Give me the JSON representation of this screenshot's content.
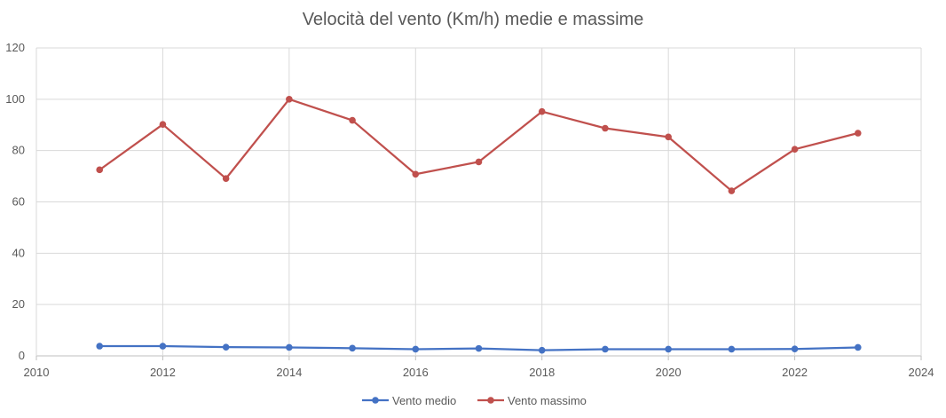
{
  "chart_data": {
    "type": "scatter",
    "title": "Velocità del vento (Km/h) medie e massime",
    "xlabel": "",
    "ylabel": "",
    "xlim": [
      2010,
      2024
    ],
    "ylim": [
      0,
      120
    ],
    "x_ticks": [
      "2010",
      "2012",
      "2014",
      "2016",
      "2018",
      "2020",
      "2022",
      "2024"
    ],
    "y_ticks": [
      "0",
      "20",
      "40",
      "60",
      "80",
      "100",
      "120"
    ],
    "grid": true,
    "legend_position": "bottom",
    "x": [
      2011,
      2012,
      2013,
      2014,
      2015,
      2016,
      2017,
      2018,
      2019,
      2020,
      2021,
      2022,
      2023
    ],
    "series": [
      {
        "name": "Vento medio",
        "color": "#4472c4",
        "values": [
          3.8,
          3.8,
          3.4,
          3.3,
          3.0,
          2.6,
          2.9,
          2.2,
          2.6,
          2.6,
          2.6,
          2.7,
          3.3
        ]
      },
      {
        "name": "Vento massimo",
        "color": "#c0504d",
        "values": [
          72.5,
          90.2,
          69.1,
          100,
          91.8,
          70.8,
          75.6,
          95.2,
          88.7,
          85.3,
          64.3,
          80.5,
          86.8
        ]
      }
    ]
  }
}
